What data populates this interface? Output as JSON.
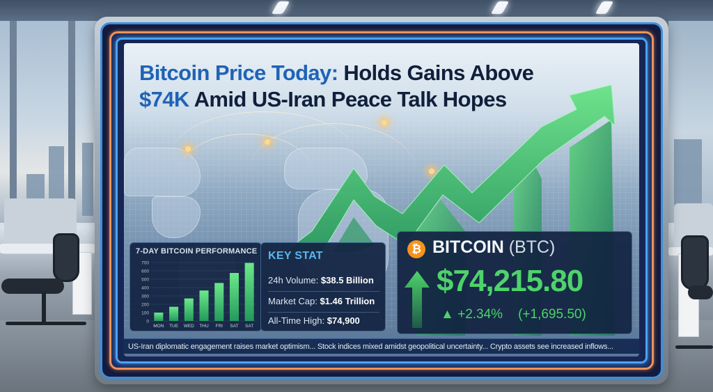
{
  "headline": {
    "accent_text": "Bitcoin Price Today:",
    "line1_rest": " Holds Gains Above",
    "line2_accent": "$74K",
    "line2_rest": " Amid US-Iran Peace Talk Hopes"
  },
  "performance_panel": {
    "title": "7-DAY BITCOIN PERFORMANCE"
  },
  "key_stat": {
    "title": "KEY STAT",
    "rows": [
      {
        "label": "24h Volume:",
        "value": "$38.5 Billion"
      },
      {
        "label": "Market Cap:",
        "value": "$1.46 Trillion"
      },
      {
        "label": "All-Time High:",
        "value": "$74,900"
      }
    ]
  },
  "btc_quote": {
    "icon": "bitcoin-logo-icon",
    "logo_glyph": "₿",
    "name": "BITCOIN",
    "symbol": "(BTC)",
    "price": "$74,215.80",
    "trend_icon": "up-arrow-icon",
    "change_glyph": "▲",
    "change_percent": "+2.34%",
    "change_abs": "(+1,695.50)"
  },
  "ticker": {
    "text": "US-Iran diplomatic engagement raises market optimism... Stock indices mixed amidst geopolitical uncertainty... Crypto assets see increased inflows..."
  },
  "colors": {
    "headline_accent": "#1f63b6",
    "headline_dark": "#101f3a",
    "positive_green": "#4ed36b",
    "key_stat_title": "#57b9ee",
    "bitcoin_orange": "#f7931a",
    "frame_orange": "#f0925a",
    "frame_blue": "#48a4f0",
    "panel_bg": "#122442"
  },
  "chart_data": {
    "type": "bar",
    "title": "7-DAY BITCOIN PERFORMANCE",
    "categories": [
      "MON",
      "TUE",
      "WED",
      "THU",
      "FRI",
      "SAT",
      "SAT"
    ],
    "values": [
      100,
      170,
      270,
      365,
      455,
      575,
      695
    ],
    "xlabel": "",
    "ylabel": "",
    "ylim": [
      0,
      700
    ],
    "yticks": [
      0,
      100,
      200,
      300,
      400,
      500,
      600,
      700
    ],
    "grid": true,
    "legend": null,
    "bar_color": "#3fcf6a"
  }
}
